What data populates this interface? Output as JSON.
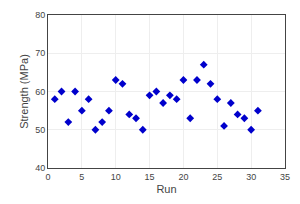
{
  "chart_data": {
    "type": "scatter",
    "x": [
      1,
      2,
      3,
      4,
      5,
      6,
      7,
      8,
      9,
      10,
      11,
      12,
      13,
      14,
      15,
      16,
      17,
      18,
      19,
      20,
      21,
      22,
      23,
      24,
      25,
      26,
      27,
      28,
      29,
      30,
      31
    ],
    "values": [
      58,
      60,
      52,
      60,
      55,
      58,
      50,
      52,
      55,
      63,
      62,
      54,
      53,
      50,
      59,
      60,
      57,
      59,
      58,
      63,
      53,
      63,
      67,
      62,
      58,
      51,
      57,
      54,
      53,
      50,
      55
    ],
    "xlabel": "Run",
    "ylabel": "Strength (MPa)",
    "xlim": [
      0,
      35
    ],
    "ylim": [
      40,
      80
    ],
    "xticks": [
      0,
      5,
      10,
      15,
      20,
      25,
      30,
      35
    ],
    "yticks": [
      40,
      50,
      60,
      70,
      80
    ],
    "color": "#0000CC",
    "marker": "diamond",
    "grid": true
  }
}
